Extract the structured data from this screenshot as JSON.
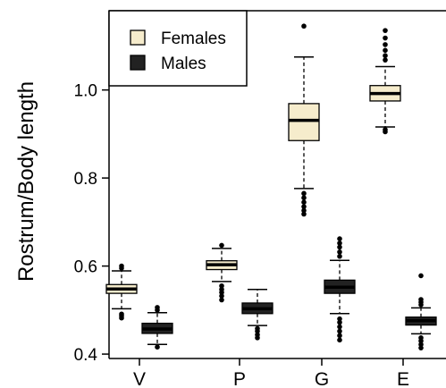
{
  "chart_data": {
    "type": "box",
    "title": "",
    "xlabel": "",
    "ylabel": "Rostrum/Body length",
    "categories": [
      "V",
      "P",
      "G",
      "E"
    ],
    "ylim": [
      0.39,
      1.18
    ],
    "yticks": [
      0.4,
      0.6,
      0.8,
      1.0
    ],
    "ytick_labels": [
      "0.4",
      "0.6",
      "0.8",
      "1.0"
    ],
    "grid": false,
    "legend_position": "top-left",
    "series": [
      {
        "name": "Females",
        "color": "#f6eccc",
        "boxes": [
          {
            "category": "V",
            "whisker_low": 0.503,
            "q1": 0.538,
            "median": 0.548,
            "q3": 0.558,
            "whisker_high": 0.589,
            "outliers": [
              0.482,
              0.487,
              0.491,
              0.595,
              0.6
            ]
          },
          {
            "category": "P",
            "whisker_low": 0.565,
            "q1": 0.592,
            "median": 0.603,
            "q3": 0.612,
            "whisker_high": 0.64,
            "outliers": [
              0.523,
              0.532,
              0.54,
              0.547,
              0.555,
              0.647
            ]
          },
          {
            "category": "G",
            "whisker_low": 0.776,
            "q1": 0.885,
            "median": 0.931,
            "q3": 0.969,
            "whisker_high": 1.075,
            "outliers": [
              0.718,
              0.726,
              0.735,
              0.745,
              0.755,
              0.765,
              1.145
            ]
          },
          {
            "category": "E",
            "whisker_low": 0.916,
            "q1": 0.975,
            "median": 0.992,
            "q3": 1.01,
            "whisker_high": 1.053,
            "outliers": [
              0.905,
              0.91,
              1.068,
              1.078,
              1.09,
              1.103,
              1.118,
              1.135
            ]
          }
        ]
      },
      {
        "name": "Males",
        "color": "#222222",
        "boxes": [
          {
            "category": "V",
            "whisker_low": 0.422,
            "q1": 0.447,
            "median": 0.457,
            "q3": 0.47,
            "whisker_high": 0.494,
            "outliers": [
              0.416,
              0.5,
              0.506
            ]
          },
          {
            "category": "P",
            "whisker_low": 0.465,
            "q1": 0.492,
            "median": 0.503,
            "q3": 0.516,
            "whisker_high": 0.547,
            "outliers": [
              0.437,
              0.444,
              0.452,
              0.458
            ]
          },
          {
            "category": "G",
            "whisker_low": 0.492,
            "q1": 0.538,
            "median": 0.552,
            "q3": 0.568,
            "whisker_high": 0.613,
            "outliers": [
              0.432,
              0.442,
              0.452,
              0.462,
              0.472,
              0.48,
              0.622,
              0.632,
              0.643,
              0.652,
              0.662
            ]
          },
          {
            "category": "E",
            "whisker_low": 0.446,
            "q1": 0.466,
            "median": 0.476,
            "q3": 0.484,
            "whisker_high": 0.505,
            "outliers": [
              0.414,
              0.422,
              0.43,
              0.437,
              0.512,
              0.518,
              0.524,
              0.578
            ]
          }
        ]
      }
    ]
  }
}
